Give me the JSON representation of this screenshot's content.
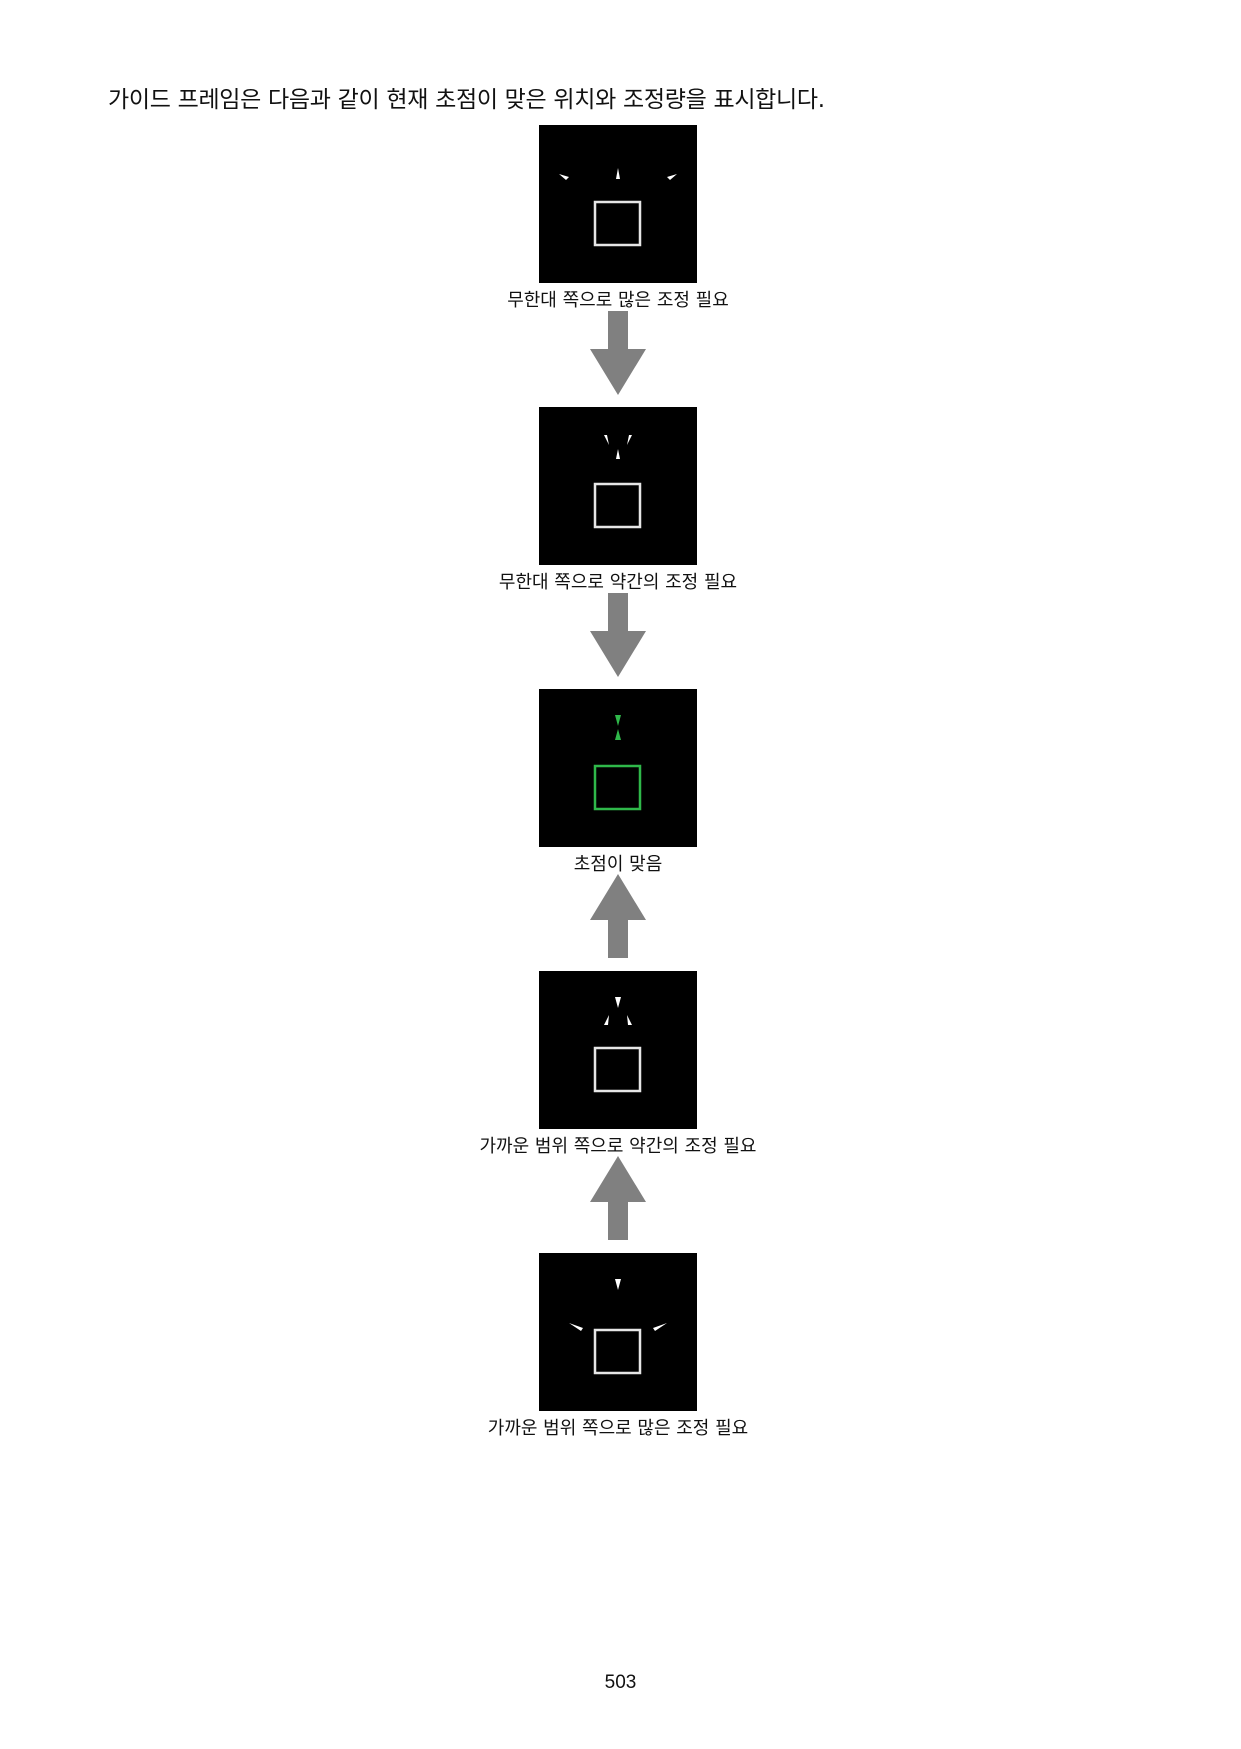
{
  "intro": "가이드 프레임은 다음과 같이 현재 초점이 맞은 위치와 조정량을 표시합니다.",
  "steps": [
    {
      "caption": "무한대 쪽으로 많은 조정 필요",
      "color": "#ffffff"
    },
    {
      "caption": "무한대 쪽으로 약간의 조정 필요",
      "color": "#ffffff"
    },
    {
      "caption": "초점이 맞음",
      "color": "#2fb84a"
    },
    {
      "caption": "가까운 범위 쪽으로 약간의 조정 필요",
      "color": "#ffffff"
    },
    {
      "caption": "가까운 범위 쪽으로 많은 조정 필요",
      "color": "#ffffff"
    }
  ],
  "arrows": [
    "down",
    "down",
    "up",
    "up"
  ],
  "arrow_color": "#808080",
  "page_number": "503"
}
